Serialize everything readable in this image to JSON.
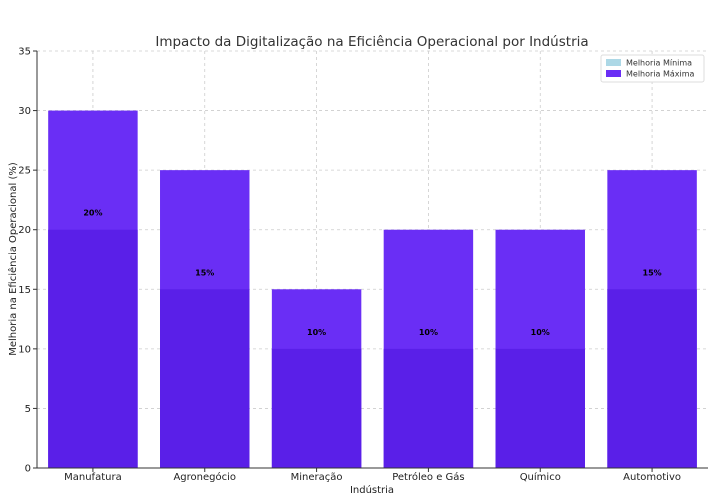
{
  "chart_data": {
    "type": "bar",
    "title": "Impacto da Digitalização na Eficiência Operacional por Indústria",
    "xlabel": "Indústria",
    "ylabel": "Melhoria na Eficiência Operacional (%)",
    "ylim": [
      0,
      35
    ],
    "yticks": [
      0,
      5,
      10,
      15,
      20,
      25,
      30,
      35
    ],
    "grid": true,
    "legend_position": "top-right",
    "categories": [
      "Manufatura",
      "Agronegócio",
      "Mineração",
      "Petróleo e Gás",
      "Químico",
      "Automotivo"
    ],
    "series": [
      {
        "name": "Melhoria Mínima",
        "values": [
          20,
          15,
          10,
          10,
          10,
          15
        ],
        "color": "#add8e6"
      },
      {
        "name": "Melhoria Máxima",
        "values": [
          30,
          25,
          15,
          20,
          20,
          25
        ],
        "color": "#6a2ef5"
      }
    ],
    "overlay_color": "#5a1fe8",
    "data_labels": [
      "20%",
      "15%",
      "10%",
      "10%",
      "10%",
      "15%"
    ]
  }
}
